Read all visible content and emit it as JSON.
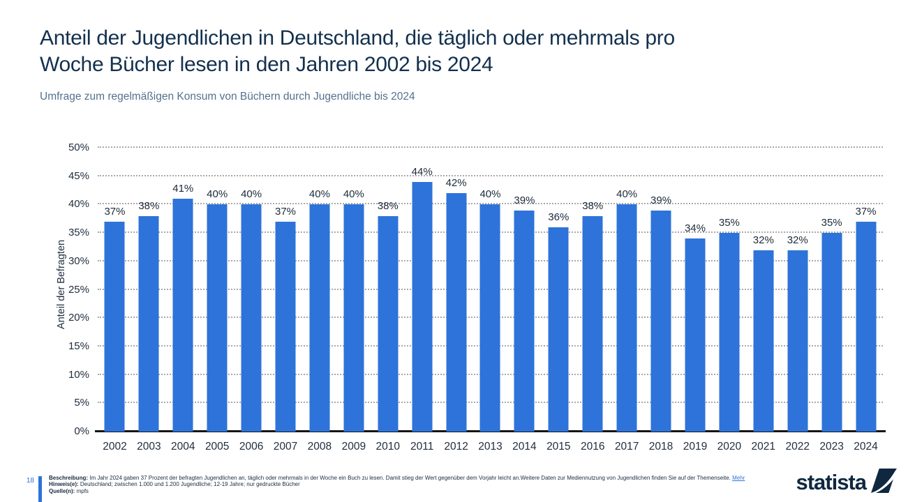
{
  "header": {
    "title_lines": [
      "Anteil der Jugendlichen in Deutschland, die täglich oder mehrmals pro",
      "Woche Bücher lesen in den Jahren 2002 bis 2024"
    ],
    "subtitle": "Umfrage zum regelmäßigen Konsum von Büchern durch Jugendliche bis 2024"
  },
  "chart_data": {
    "type": "bar",
    "title": "Anteil der Jugendlichen in Deutschland, die täglich oder mehrmals pro Woche Bücher lesen in den Jahren 2002 bis 2024",
    "subtitle": "Umfrage zum regelmäßigen Konsum von Büchern durch Jugendliche bis 2024",
    "categories": [
      "2002",
      "2003",
      "2004",
      "2005",
      "2006",
      "2007",
      "2008",
      "2009",
      "2010",
      "2011",
      "2012",
      "2013",
      "2014",
      "2015",
      "2016",
      "2017",
      "2018",
      "2019",
      "2020",
      "2021",
      "2022",
      "2023",
      "2024"
    ],
    "values": [
      37,
      38,
      41,
      40,
      40,
      37,
      40,
      40,
      38,
      44,
      42,
      40,
      39,
      36,
      38,
      40,
      39,
      34,
      35,
      32,
      32,
      35,
      37
    ],
    "value_suffix": "%",
    "xlabel": "",
    "ylabel": "Anteil der Befragten",
    "ylim": [
      0,
      50
    ],
    "ytick_step": 5,
    "y_ticks": [
      "0%",
      "5%",
      "10%",
      "15%",
      "20%",
      "25%",
      "30%",
      "35%",
      "40%",
      "45%",
      "50%"
    ],
    "bar_color": "#2e73d9",
    "grid": "horizontal-dotted",
    "legend": "none"
  },
  "footer": {
    "page_number": "18",
    "description_label": "Beschreibung:",
    "description_text": "Im Jahr 2024 gaben 37 Prozent der befragten Jugendlichen an, täglich oder mehrmals in der Woche ein Buch zu lesen. Damit stieg der Wert gegenüber dem Vorjahr leicht an.Weitere Daten zur Mediennutzung von Jugendlichen finden Sie auf der Themenseite.",
    "more_label": "Mehr",
    "hints_label": "Hinweis(e):",
    "hints_text": "Deutschland; zwischen 1.000 und 1.200 Jugendliche; 12-19 Jahre; nur gedruckte Bücher",
    "source_label": "Quelle(n):",
    "source_text": "mpfs",
    "brand": "statista"
  },
  "colors": {
    "accent_blue": "#2e73d9",
    "title_navy": "#13304e",
    "subtitle_blue_gray": "#53718e",
    "brand_navy": "#0f2840"
  }
}
